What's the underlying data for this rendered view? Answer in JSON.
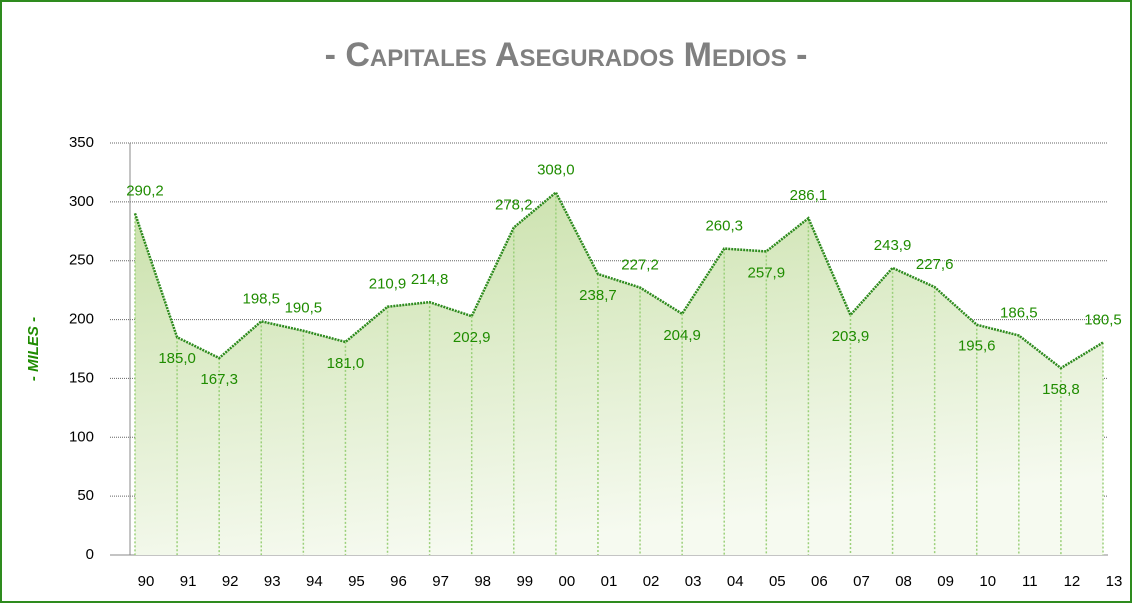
{
  "chart_data": {
    "type": "area",
    "title": "- Capitales Asegurados Medios -",
    "y_label": "- MILES -",
    "categories": [
      "90",
      "91",
      "92",
      "93",
      "94",
      "95",
      "96",
      "97",
      "98",
      "99",
      "00",
      "01",
      "02",
      "03",
      "04",
      "05",
      "06",
      "07",
      "08",
      "09",
      "10",
      "11",
      "12",
      "13"
    ],
    "values": [
      290.2,
      185.0,
      167.3,
      198.5,
      190.5,
      181.0,
      210.9,
      214.8,
      202.9,
      278.2,
      308.0,
      238.7,
      227.2,
      204.9,
      260.3,
      257.9,
      286.1,
      203.9,
      243.9,
      227.6,
      195.6,
      186.5,
      158.8,
      180.5
    ],
    "value_labels": [
      "290,2",
      "185,0",
      "167,3",
      "198,5",
      "190,5",
      "181,0",
      "210,9",
      "214,8",
      "202,9",
      "278,2",
      "308,0",
      "238,7",
      "227,2",
      "204,9",
      "260,3",
      "257,9",
      "286,1",
      "203,9",
      "243,9",
      "227,6",
      "195,6",
      "186,5",
      "158,8",
      "180,5"
    ],
    "color": "#2e8b1e",
    "ylim": [
      0,
      350
    ],
    "yticks": [
      0,
      50,
      100,
      150,
      200,
      250,
      300,
      350
    ],
    "grid": true
  }
}
